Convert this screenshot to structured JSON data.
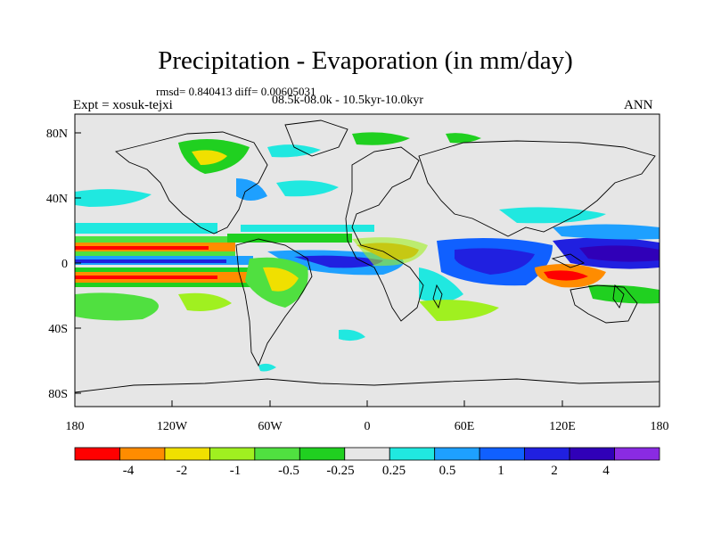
{
  "header": {
    "title": "Precipitation - Evaporation (in mm/day)",
    "stats": "rmsd= 0.840413 diff= 0.00605031",
    "period": "08.5k-08.0k - 10.5kyr-10.0kyr",
    "experiment": "Expt = xosuk-tejxi",
    "season": "ANN"
  },
  "axes": {
    "lat_labels": [
      "80N",
      "40N",
      "0",
      "40S",
      "80S"
    ],
    "lon_labels": [
      "180",
      "120W",
      "60W",
      "0",
      "60E",
      "120E",
      "180"
    ]
  },
  "colorbar": {
    "colors": [
      "#ff0000",
      "#ff8c00",
      "#f0e000",
      "#a0f020",
      "#50e040",
      "#20d020",
      "#e6e6e6",
      "#20e8e0",
      "#1ea0ff",
      "#1060ff",
      "#2020e0",
      "#3000b8",
      "#8a2be2"
    ],
    "labels": [
      "-4",
      "-2",
      "-1",
      "-0.5",
      "-0.25",
      "0.25",
      "0.5",
      "1",
      "2",
      "4"
    ]
  }
}
